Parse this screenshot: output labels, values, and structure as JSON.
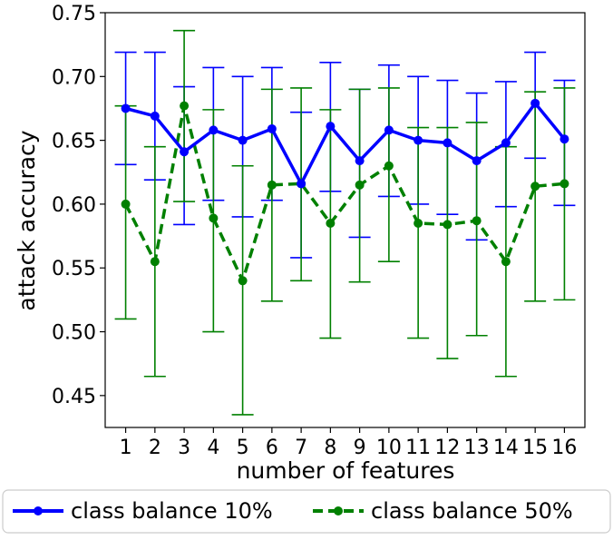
{
  "chart_data": {
    "type": "line",
    "title": "",
    "xlabel": "number of features",
    "ylabel": "attack accuracy",
    "x": [
      1,
      2,
      3,
      4,
      5,
      6,
      7,
      8,
      9,
      10,
      11,
      12,
      13,
      14,
      15,
      16
    ],
    "x_tick_labels": [
      "1",
      "2",
      "3",
      "4",
      "5",
      "6",
      "7",
      "8",
      "9",
      "10",
      "11",
      "12",
      "13",
      "14",
      "15",
      "16"
    ],
    "xlim": [
      0.3,
      16.7
    ],
    "ylim": [
      0.425,
      0.75
    ],
    "y_ticks": [
      0.45,
      0.5,
      0.55,
      0.6,
      0.65,
      0.7,
      0.75
    ],
    "y_tick_labels": [
      "0.45",
      "0.50",
      "0.55",
      "0.60",
      "0.65",
      "0.70",
      "0.75"
    ],
    "grid": false,
    "legend_position": "bottom, outside plot",
    "series": [
      {
        "name": "class balance 10%",
        "color": "#0000ff",
        "line_style": "solid",
        "marker": "circle",
        "values": [
          0.675,
          0.669,
          0.641,
          0.658,
          0.65,
          0.659,
          0.616,
          0.661,
          0.634,
          0.658,
          0.65,
          0.648,
          0.634,
          0.648,
          0.679,
          0.651
        ],
        "error_low": [
          0.631,
          0.619,
          0.584,
          0.603,
          0.59,
          0.603,
          0.558,
          0.61,
          0.574,
          0.606,
          0.6,
          0.592,
          0.572,
          0.598,
          0.636,
          0.599
        ],
        "error_high": [
          0.719,
          0.719,
          0.692,
          0.707,
          0.7,
          0.707,
          0.672,
          0.711,
          0.69,
          0.709,
          0.7,
          0.697,
          0.687,
          0.696,
          0.719,
          0.697
        ]
      },
      {
        "name": "class balance 50%",
        "color": "#008000",
        "line_style": "dashed",
        "marker": "circle",
        "values": [
          0.6,
          0.555,
          0.677,
          0.589,
          0.54,
          0.615,
          0.616,
          0.585,
          0.615,
          0.63,
          0.585,
          0.584,
          0.587,
          0.555,
          0.614,
          0.616
        ],
        "error_low": [
          0.51,
          0.465,
          0.602,
          0.5,
          0.435,
          0.524,
          0.54,
          0.495,
          0.539,
          0.555,
          0.495,
          0.479,
          0.497,
          0.465,
          0.524,
          0.525
        ],
        "error_high": [
          0.677,
          0.645,
          0.736,
          0.674,
          0.63,
          0.69,
          0.691,
          0.674,
          0.69,
          0.691,
          0.66,
          0.66,
          0.664,
          0.645,
          0.688,
          0.691
        ]
      }
    ]
  }
}
